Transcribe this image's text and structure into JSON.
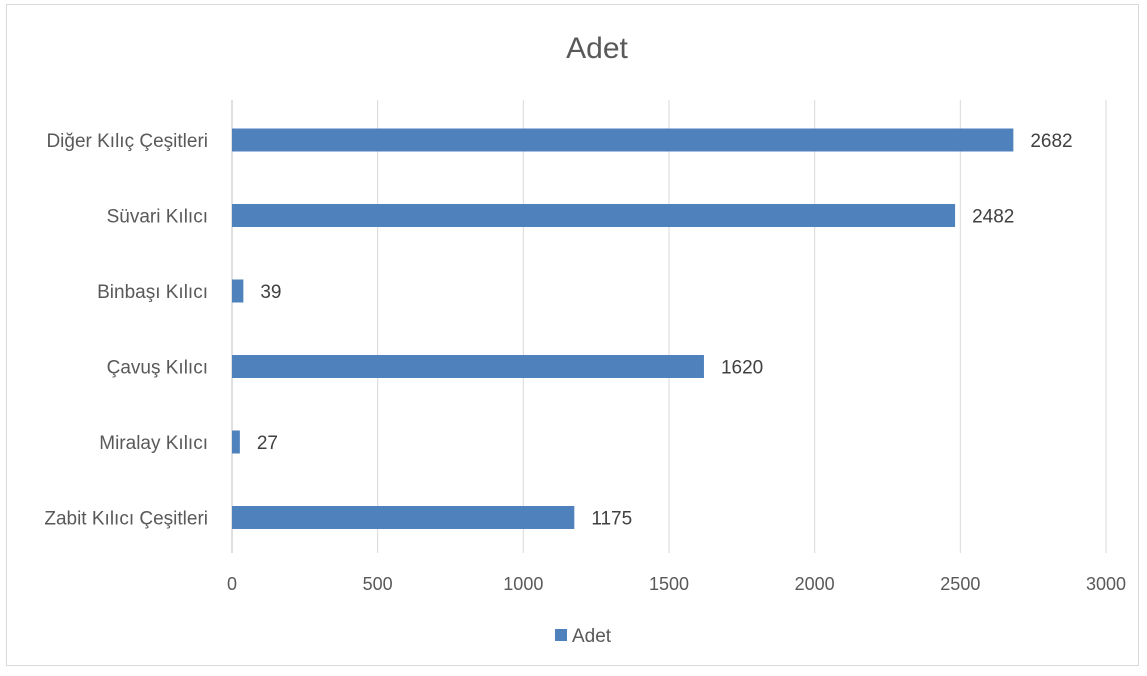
{
  "chart_data": {
    "type": "bar",
    "orientation": "horizontal",
    "title": "Adet",
    "categories": [
      "Diğer Kılıç Çeşitleri",
      "Süvari Kılıcı",
      "Binbaşı Kılıcı",
      "Çavuş Kılıcı",
      "Miralay Kılıcı",
      "Zabit Kılıcı Çeşitleri"
    ],
    "series": [
      {
        "name": "Adet",
        "values": [
          2682,
          2482,
          39,
          1620,
          27,
          1175
        ],
        "color": "#4f81bd"
      }
    ],
    "xlim": [
      0,
      3000
    ],
    "xticks": [
      "0",
      "500",
      "1000",
      "1500",
      "2000",
      "2500",
      "3000"
    ],
    "grid": true,
    "data_labels": true,
    "legend": "bottom"
  }
}
